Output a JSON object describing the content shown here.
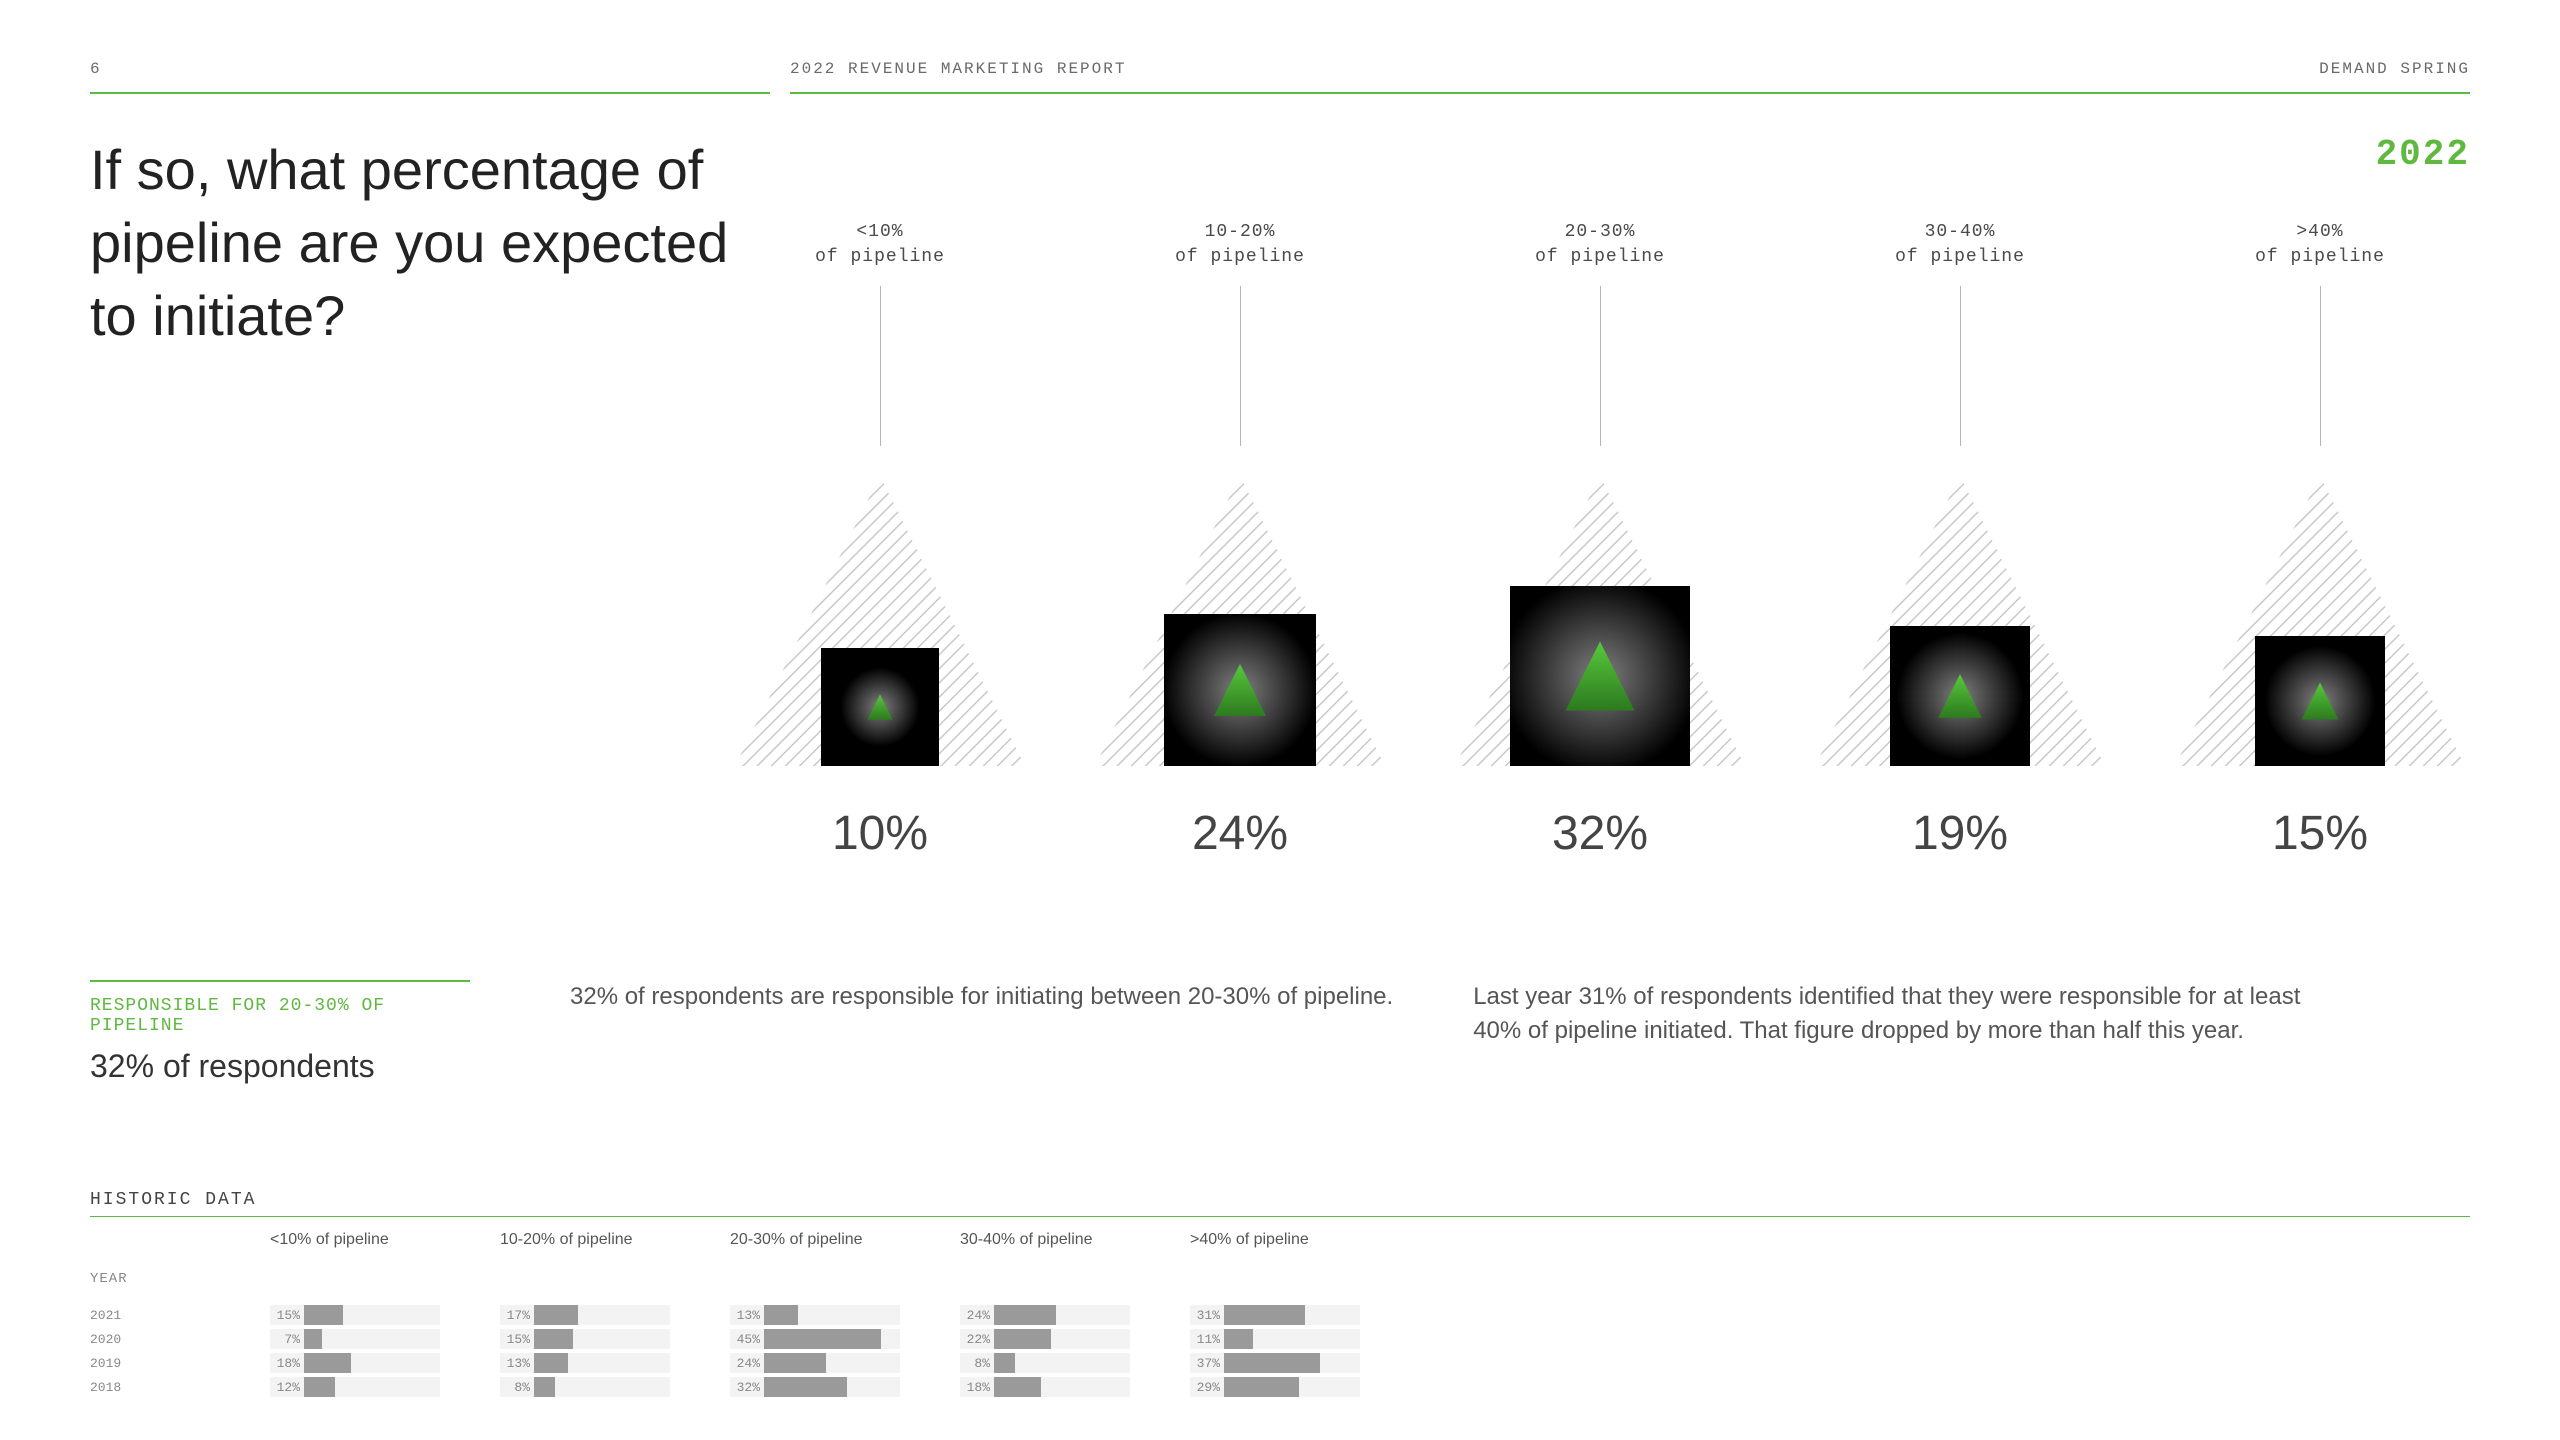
{
  "header": {
    "page_number": "6",
    "report_title": "2022 REVENUE MARKETING REPORT",
    "brand": "DEMAND SPRING",
    "accent_color": "#5fb83f"
  },
  "year": "2022",
  "question": "If so, what percentage of pipeline are you expected to initiate?",
  "chart": {
    "type": "infographic",
    "buckets": [
      {
        "label_line1": "<10%",
        "label_line2": "of pipeline",
        "value": 10,
        "box_size": 118,
        "inner_tri": 30,
        "glow": 40
      },
      {
        "label_line1": "10-20%",
        "label_line2": "of pipeline",
        "value": 24,
        "box_size": 152,
        "inner_tri": 62,
        "glow": 78
      },
      {
        "label_line1": "20-30%",
        "label_line2": "of pipeline",
        "value": 32,
        "box_size": 180,
        "inner_tri": 82,
        "glow": 100
      },
      {
        "label_line1": "30-40%",
        "label_line2": "of pipeline",
        "value": 19,
        "box_size": 140,
        "inner_tri": 52,
        "glow": 64
      },
      {
        "label_line1": ">40%",
        "label_line2": "of pipeline",
        "value": 15,
        "box_size": 130,
        "inner_tri": 44,
        "glow": 56
      }
    ],
    "outer_triangle_size": 290,
    "stripe_color": "#c9c9c9",
    "box_color": "#000000",
    "inner_triangle_color": "#58c93c",
    "value_color": "#444444",
    "value_fontsize": 48,
    "label_fontsize": 18,
    "label_color": "#4a4a4a"
  },
  "callout": {
    "tag": "RESPONSIBLE FOR 20-30% OF PIPELINE",
    "headline": "32% of respondents"
  },
  "paragraph1": "32% of respondents are responsible for initiating between 20-30% of pipeline.",
  "paragraph2": "Last year 31% of respondents identified that they were responsible for at least 40% of pipeline initiated. That figure dropped by more than half this year.",
  "historic": {
    "title": "HISTORIC DATA",
    "year_header": "YEAR",
    "columns": [
      "<10% of pipeline",
      "10-20% of pipeline",
      "20-30% of pipeline",
      "30-40% of pipeline",
      ">40% of pipeline"
    ],
    "years": [
      "2021",
      "2020",
      "2019",
      "2018"
    ],
    "rows": [
      [
        15,
        17,
        13,
        24,
        31
      ],
      [
        7,
        15,
        45,
        22,
        11
      ],
      [
        18,
        13,
        24,
        8,
        37
      ],
      [
        12,
        8,
        32,
        18,
        29
      ]
    ],
    "bar_color": "#9a9a9a",
    "bg_color": "#f3f3f3"
  }
}
